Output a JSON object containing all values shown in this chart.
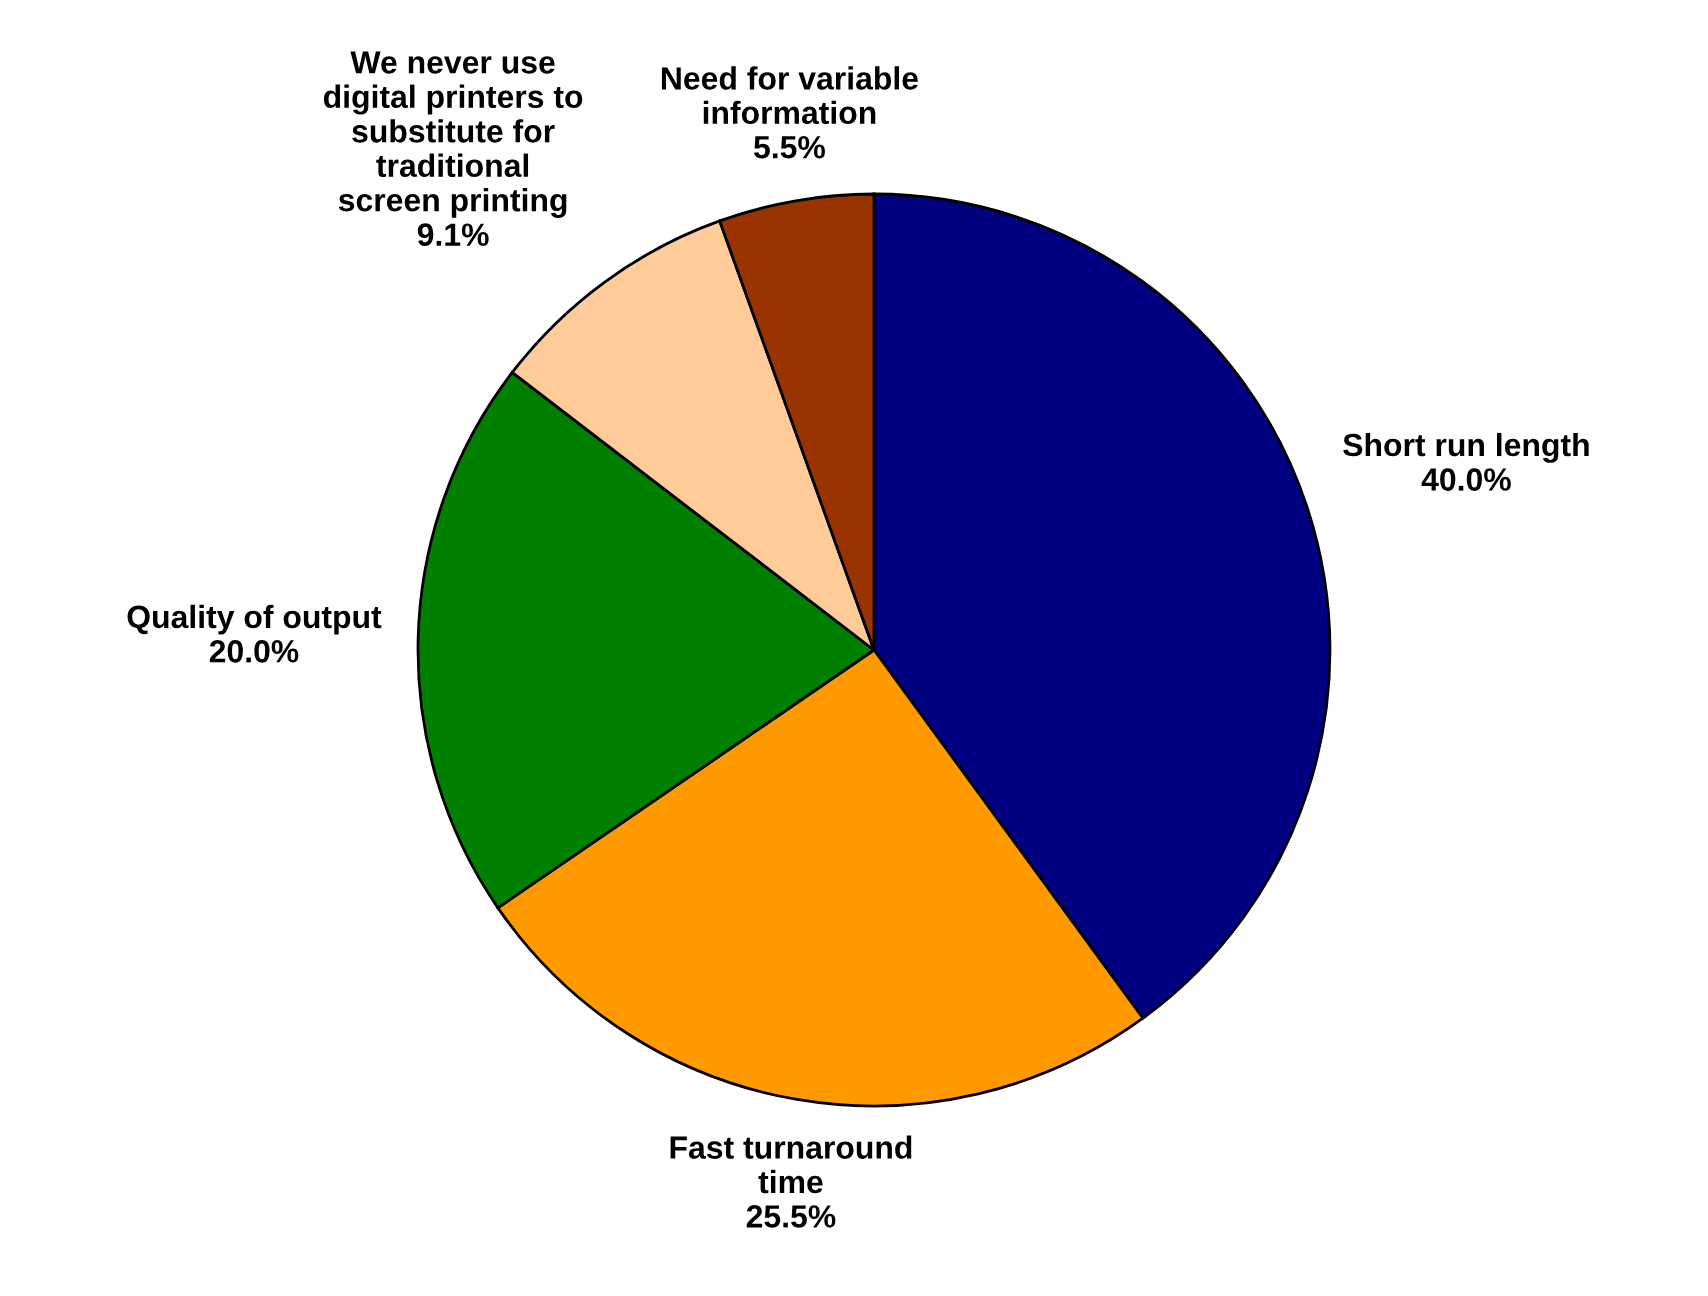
{
  "chart_data": {
    "type": "pie",
    "categories": [
      "Short run length",
      "Fast turnaround\ntime",
      "Quality of output",
      "We never use\ndigital printers to\nsubstitute for\ntraditional\nscreen printing",
      "Need for variable\ninformation"
    ],
    "values": [
      40.0,
      25.5,
      20.0,
      9.1,
      5.5
    ],
    "colors": [
      "#000080",
      "#ff9900",
      "#008000",
      "#ffcc99",
      "#993300"
    ],
    "value_labels": [
      "40.0%",
      "25.5%",
      "20.0%",
      "9.1%",
      "5.5%"
    ]
  }
}
